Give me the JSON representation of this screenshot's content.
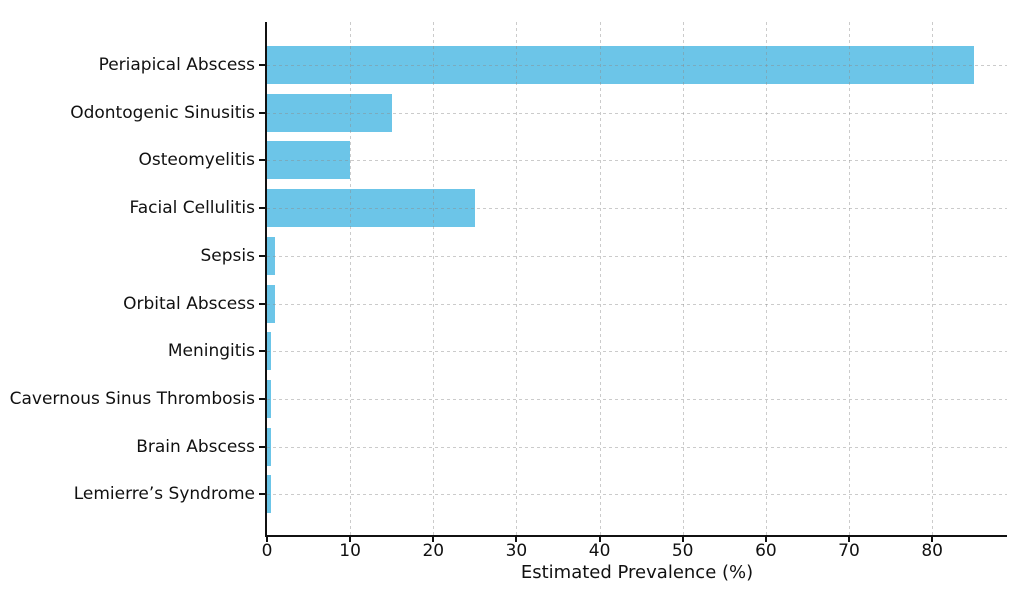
{
  "chart_data": {
    "type": "bar",
    "orientation": "horizontal",
    "title": "",
    "xlabel": "Estimated Prevalence (%)",
    "ylabel": "",
    "categories": [
      "Periapical Abscess",
      "Odontogenic Sinusitis",
      "Osteomyelitis",
      "Facial Cellulitis",
      "Sepsis",
      "Orbital Abscess",
      "Meningitis",
      "Cavernous Sinus Thrombosis",
      "Brain Abscess",
      "Lemierre’s Syndrome"
    ],
    "values": [
      85,
      15,
      10,
      25,
      1,
      1,
      0.5,
      0.5,
      0.5,
      0.5
    ],
    "xlim": [
      0,
      89
    ],
    "xticks": [
      0,
      10,
      20,
      30,
      40,
      50,
      60,
      70,
      80
    ],
    "grid": true,
    "grid_style": "dashed",
    "legend": null,
    "colors": {
      "bar": "#6CC5E8",
      "grid": "#c9c9c9",
      "axis": "#111111",
      "text": "#111111",
      "background": "#ffffff"
    }
  }
}
